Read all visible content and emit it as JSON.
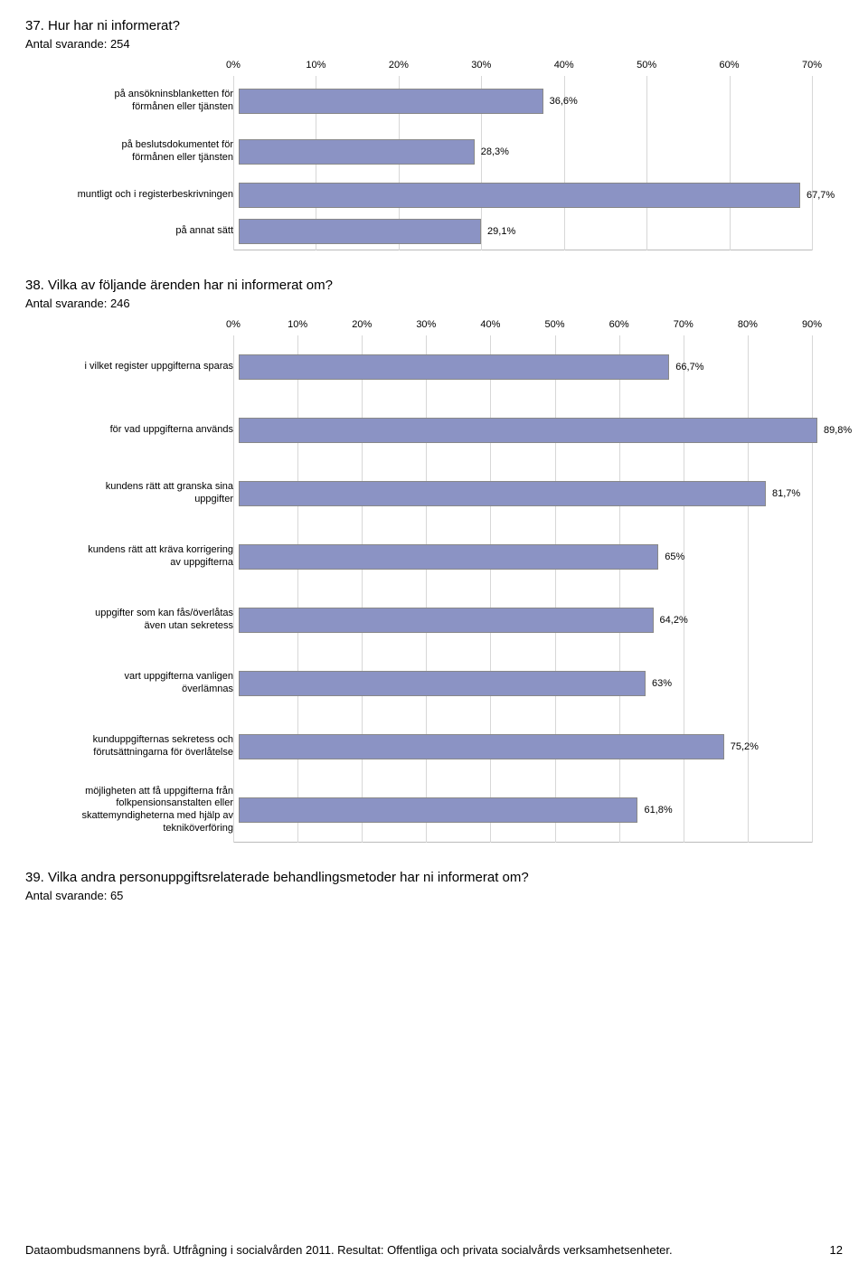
{
  "page": {
    "footer_text": "Dataombudsmannens byrå. Utfrågning i socialvården 2011. Resultat: Offentliga och privata socialvårds verksamhetsenheter.",
    "page_number": "12"
  },
  "q37": {
    "title": "37. Hur har ni informerat?",
    "subline": "Antal svarande: 254",
    "type": "bar",
    "label_col_width": 230,
    "bar_area_width": 640,
    "xmax": 70,
    "xtick_step": 10,
    "bar_color": "#8b93c4",
    "grid_color": "#d7d7d7",
    "rows": [
      {
        "label": "på ansökninsblanketten för\nförmånen eller tjänsten",
        "value": 36.6,
        "display": "36,6%",
        "h": "med"
      },
      {
        "label": "på beslutsdokumentet för\nförmånen eller tjänsten",
        "value": 28.3,
        "display": "28,3%",
        "h": "med"
      },
      {
        "label": "muntligt och i registerbeskrivningen",
        "value": 67.7,
        "display": "67,7%",
        "h": ""
      },
      {
        "label": "på annat sätt",
        "value": 29.1,
        "display": "29,1%",
        "h": ""
      }
    ]
  },
  "q38": {
    "title": "38. Vilka av följande ärenden har ni informerat om?",
    "subline": "Antal svarande: 246",
    "type": "bar",
    "label_col_width": 230,
    "bar_area_width": 640,
    "xmax": 90,
    "xtick_step": 10,
    "bar_color": "#8b93c4",
    "grid_color": "#d7d7d7",
    "rows": [
      {
        "label": "i vilket register uppgifterna sparas",
        "value": 66.7,
        "display": "66,7%",
        "h": "tall"
      },
      {
        "label": "för vad uppgifterna används",
        "value": 89.8,
        "display": "89,8%",
        "h": "tall"
      },
      {
        "label": "kundens rätt att granska sina\nuppgifter",
        "value": 81.7,
        "display": "81,7%",
        "h": "tall"
      },
      {
        "label": "kundens rätt att kräva korrigering\nav uppgifterna",
        "value": 65.0,
        "display": "65%",
        "h": "tall"
      },
      {
        "label": "uppgifter som kan fås/överlåtas\näven utan sekretess",
        "value": 64.2,
        "display": "64,2%",
        "h": "tall"
      },
      {
        "label": "vart uppgifterna vanligen\növerlämnas",
        "value": 63.0,
        "display": "63%",
        "h": "tall"
      },
      {
        "label": "kunduppgifternas sekretess och\nförutsättningarna för överlåtelse",
        "value": 75.2,
        "display": "75,2%",
        "h": "tall"
      },
      {
        "label": "möjligheten att få uppgifterna från\nfolkpensionsanstalten eller\nskattemyndigheterna med hjälp av\ntekniköverföring",
        "value": 61.8,
        "display": "61,8%",
        "h": "tall"
      }
    ]
  },
  "q39": {
    "title": "39. Vilka andra personuppgiftsrelaterade behandlingsmetoder har ni informerat om?",
    "subline": "Antal svarande: 65"
  }
}
